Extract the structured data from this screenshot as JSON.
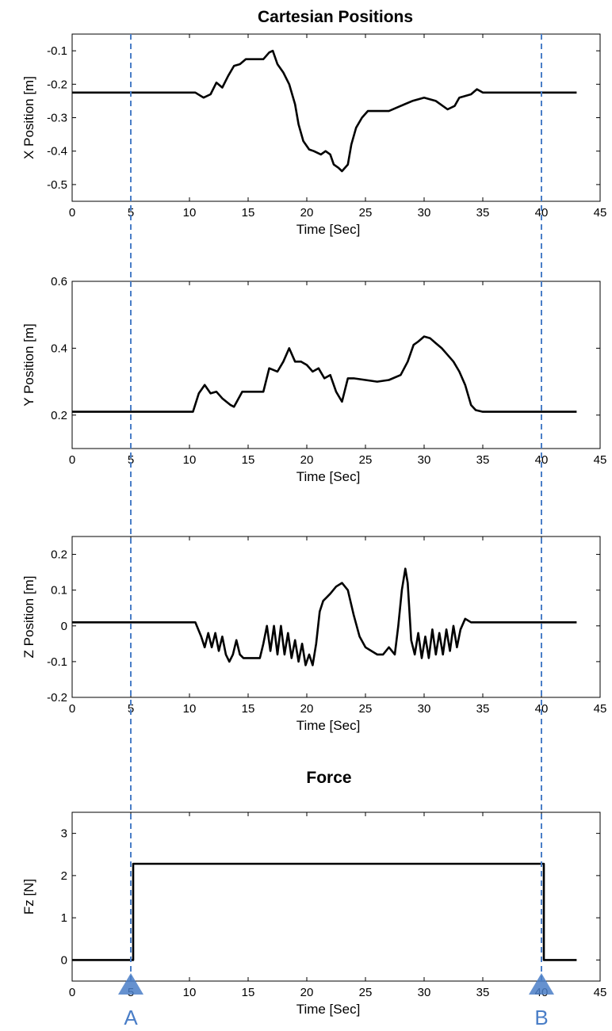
{
  "figure": {
    "title": "Cartesian Positions",
    "subtitle": "Force",
    "colors": {
      "line": "#000000",
      "marker": "#4a7ec7",
      "frame": "#000000"
    }
  },
  "markers": [
    {
      "label": "A",
      "x": 5
    },
    {
      "label": "B",
      "x": 40
    }
  ],
  "chart_data": [
    {
      "type": "line",
      "xlabel": "Time [Sec]",
      "ylabel": "X Position [m]",
      "xlim": [
        0,
        45
      ],
      "ylim": [
        -0.55,
        -0.05
      ],
      "yreversed": true,
      "xticks": [
        0,
        5,
        10,
        15,
        20,
        25,
        30,
        35,
        40,
        45
      ],
      "yticks": [
        -0.1,
        -0.2,
        -0.3,
        -0.4,
        -0.5
      ],
      "grid": false,
      "series": [
        {
          "x": [
            0,
            10.5,
            11.2,
            11.8,
            12.3,
            12.8,
            13.3,
            13.8,
            14.3,
            14.8,
            15.5,
            16.3,
            16.8,
            17.1,
            17.5,
            18.0,
            18.5,
            19.0,
            19.3,
            19.7,
            20.2,
            20.6,
            21.2,
            21.6,
            22.0,
            22.3,
            22.7,
            23.0,
            23.5,
            23.8,
            24.2,
            24.7,
            25.2,
            26.0,
            27.0,
            28.0,
            29.0,
            30.0,
            31.0,
            32.0,
            32.6,
            33.0,
            33.5,
            34.0,
            34.5,
            35.0,
            40.0,
            43.0
          ],
          "y": [
            -0.225,
            -0.225,
            -0.24,
            -0.23,
            -0.195,
            -0.21,
            -0.175,
            -0.145,
            -0.14,
            -0.125,
            -0.125,
            -0.125,
            -0.105,
            -0.1,
            -0.14,
            -0.165,
            -0.2,
            -0.26,
            -0.32,
            -0.37,
            -0.395,
            -0.4,
            -0.41,
            -0.4,
            -0.41,
            -0.44,
            -0.45,
            -0.46,
            -0.44,
            -0.38,
            -0.33,
            -0.3,
            -0.28,
            -0.28,
            -0.28,
            -0.265,
            -0.25,
            -0.24,
            -0.25,
            -0.275,
            -0.265,
            -0.24,
            -0.235,
            -0.23,
            -0.215,
            -0.225,
            -0.225,
            -0.225
          ]
        }
      ]
    },
    {
      "type": "line",
      "xlabel": "Time [Sec]",
      "ylabel": "Y Position [m]",
      "xlim": [
        0,
        45
      ],
      "ylim": [
        0.1,
        0.6
      ],
      "xticks": [
        0,
        5,
        10,
        15,
        20,
        25,
        30,
        35,
        40,
        45
      ],
      "yticks": [
        0.2,
        0.4,
        0.6
      ],
      "grid": false,
      "series": [
        {
          "x": [
            0,
            10.3,
            10.8,
            11.3,
            11.8,
            12.3,
            12.8,
            13.5,
            13.8,
            14.5,
            15.0,
            16.3,
            16.8,
            17.5,
            18.0,
            18.5,
            19.0,
            19.5,
            20.0,
            20.5,
            21.0,
            21.5,
            22.0,
            22.5,
            23.0,
            23.5,
            24.0,
            25.0,
            26.0,
            27.0,
            28.0,
            28.6,
            29.1,
            29.5,
            30.0,
            30.5,
            31.0,
            31.5,
            32.0,
            32.5,
            33.0,
            33.5,
            34.0,
            34.4,
            35.0,
            40.0,
            43.0
          ],
          "y": [
            0.21,
            0.21,
            0.265,
            0.29,
            0.265,
            0.27,
            0.25,
            0.23,
            0.225,
            0.27,
            0.27,
            0.27,
            0.34,
            0.33,
            0.36,
            0.4,
            0.36,
            0.36,
            0.35,
            0.33,
            0.34,
            0.31,
            0.32,
            0.27,
            0.24,
            0.31,
            0.31,
            0.305,
            0.3,
            0.305,
            0.32,
            0.36,
            0.41,
            0.42,
            0.435,
            0.43,
            0.415,
            0.4,
            0.38,
            0.36,
            0.33,
            0.29,
            0.23,
            0.215,
            0.21,
            0.21,
            0.21
          ]
        }
      ]
    },
    {
      "type": "line",
      "xlabel": "Time [Sec]",
      "ylabel": "Z Position [m]",
      "xlim": [
        0,
        45
      ],
      "ylim": [
        -0.2,
        0.25
      ],
      "xticks": [
        0,
        5,
        10,
        15,
        20,
        25,
        30,
        35,
        40,
        45
      ],
      "yticks": [
        0.2,
        0.1,
        0,
        -0.1,
        -0.2
      ],
      "grid": false,
      "series": [
        {
          "x": [
            0,
            10.5,
            11.0,
            11.3,
            11.6,
            11.9,
            12.2,
            12.5,
            12.8,
            13.1,
            13.4,
            13.7,
            14.0,
            14.3,
            14.6,
            15.0,
            16.0,
            16.3,
            16.6,
            16.9,
            17.2,
            17.5,
            17.8,
            18.1,
            18.4,
            18.7,
            19.0,
            19.3,
            19.6,
            19.9,
            20.2,
            20.5,
            20.8,
            21.1,
            21.4,
            21.7,
            22.0,
            22.5,
            23.0,
            23.5,
            24.0,
            24.5,
            25.0,
            25.5,
            26.0,
            26.5,
            27.0,
            27.5,
            27.8,
            28.1,
            28.4,
            28.6,
            28.9,
            29.2,
            29.5,
            29.8,
            30.1,
            30.4,
            30.7,
            31.0,
            31.3,
            31.6,
            31.9,
            32.2,
            32.5,
            32.8,
            33.1,
            33.5,
            34.0,
            35.0,
            40.0,
            43.0
          ],
          "y": [
            0.01,
            0.01,
            -0.03,
            -0.06,
            -0.02,
            -0.06,
            -0.02,
            -0.07,
            -0.03,
            -0.08,
            -0.1,
            -0.08,
            -0.04,
            -0.08,
            -0.09,
            -0.09,
            -0.09,
            -0.05,
            0.0,
            -0.07,
            0.0,
            -0.08,
            0.0,
            -0.08,
            -0.02,
            -0.09,
            -0.04,
            -0.1,
            -0.05,
            -0.11,
            -0.08,
            -0.11,
            -0.05,
            0.04,
            0.07,
            0.08,
            0.09,
            0.11,
            0.12,
            0.1,
            0.03,
            -0.03,
            -0.06,
            -0.07,
            -0.08,
            -0.08,
            -0.06,
            -0.08,
            0.0,
            0.1,
            0.16,
            0.12,
            -0.04,
            -0.08,
            -0.02,
            -0.09,
            -0.03,
            -0.09,
            -0.01,
            -0.08,
            -0.02,
            -0.08,
            -0.01,
            -0.07,
            0.0,
            -0.06,
            -0.01,
            0.02,
            0.01,
            0.01,
            0.01,
            0.01
          ]
        }
      ]
    },
    {
      "type": "line",
      "xlabel": "Time [Sec]",
      "ylabel": "Fz [N]",
      "xlim": [
        0,
        45
      ],
      "ylim": [
        -0.5,
        3.5
      ],
      "xticks": [
        0,
        5,
        10,
        15,
        20,
        25,
        30,
        35,
        40,
        45
      ],
      "yticks": [
        0,
        1,
        2,
        3
      ],
      "grid": false,
      "series": [
        {
          "x": [
            0,
            5.2,
            5.2,
            40.2,
            40.2,
            43.0
          ],
          "y": [
            0,
            0,
            2.28,
            2.28,
            0,
            0
          ]
        }
      ]
    }
  ]
}
